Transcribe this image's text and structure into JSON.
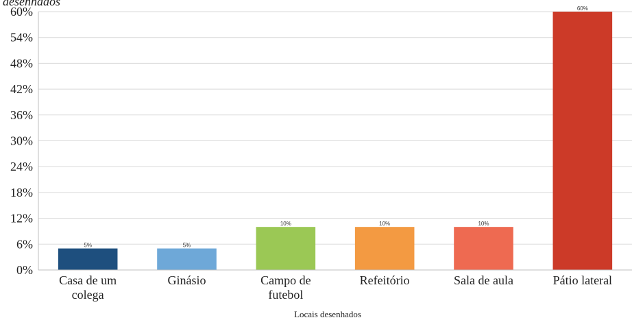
{
  "chart_data": {
    "type": "bar",
    "title_fragment": "desenhados",
    "categories": [
      "Casa de um colega",
      "Ginásio",
      "Campo de futebol",
      "Refeitório",
      "Sala de aula",
      "Pátio lateral"
    ],
    "category_lines": [
      [
        "Casa de um",
        "colega"
      ],
      [
        "Ginásio"
      ],
      [
        "Campo de",
        "futebol"
      ],
      [
        "Refeitório"
      ],
      [
        "Sala de aula"
      ],
      [
        "Pátio lateral"
      ]
    ],
    "values": [
      5,
      5,
      10,
      10,
      10,
      60
    ],
    "data_labels": [
      "5%",
      "5%",
      "10%",
      "10%",
      "10%",
      "60%"
    ],
    "colors": [
      "#1e4f7e",
      "#6ea8d8",
      "#9bc855",
      "#f39a42",
      "#ee6a51",
      "#cc3a28"
    ],
    "xlabel": "Locais desenhados",
    "ylabel": "",
    "ylim": [
      0,
      60
    ],
    "yticks": [
      0,
      6,
      12,
      18,
      24,
      30,
      36,
      42,
      48,
      54,
      60
    ],
    "ytick_labels": [
      "0%",
      "6%",
      "12%",
      "18%",
      "24%",
      "30%",
      "36%",
      "42%",
      "48%",
      "54%",
      "60%"
    ],
    "grid": true,
    "legend": "none"
  }
}
